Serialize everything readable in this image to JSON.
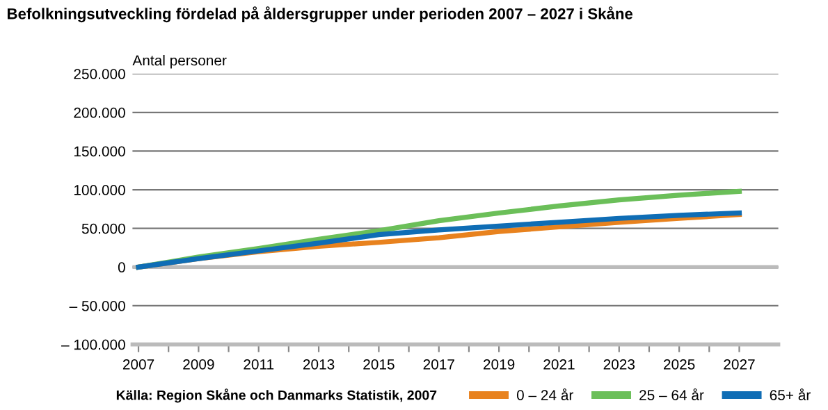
{
  "chart_data": {
    "type": "line",
    "title": "Befolkningsutveckling fördelad på åldersgrupper under perioden 2007 – 2027 i Skåne",
    "ylabel": "Antal personer",
    "x": [
      2007,
      2009,
      2011,
      2013,
      2015,
      2017,
      2019,
      2021,
      2023,
      2025,
      2027
    ],
    "series": [
      {
        "name": "0 – 24 år",
        "color": "#e8821e",
        "values": [
          0,
          11000,
          20000,
          27000,
          32000,
          38000,
          46000,
          52000,
          58000,
          63000,
          68000
        ]
      },
      {
        "name": "25 – 64 år",
        "color": "#6bbf59",
        "values": [
          0,
          13000,
          24000,
          36000,
          47000,
          60000,
          70000,
          79000,
          87000,
          93000,
          98000
        ]
      },
      {
        "name": "65+ år",
        "color": "#0f6db5",
        "values": [
          0,
          11000,
          21000,
          31000,
          42000,
          48000,
          53000,
          58000,
          63000,
          67000,
          70000
        ]
      }
    ],
    "xlim": [
      2006.8,
      2028.3
    ],
    "xticks": [
      2007,
      {
        "value": 2008,
        "label": null
      },
      2009,
      {
        "value": 2010,
        "label": null
      },
      2011,
      {
        "value": 2012,
        "label": null
      },
      2013,
      {
        "value": 2014,
        "label": null
      },
      2015,
      {
        "value": 2016,
        "label": null
      },
      2017,
      {
        "value": 2018,
        "label": null
      },
      2019,
      {
        "value": 2020,
        "label": null
      },
      2021,
      {
        "value": 2022,
        "label": null
      },
      2023,
      {
        "value": 2024,
        "label": null
      },
      2025,
      {
        "value": 2026,
        "label": null
      },
      2027
    ],
    "ylim": [
      -100000,
      250000
    ],
    "yticks": [
      {
        "value": -100000,
        "label": "– 100.000"
      },
      {
        "value": -50000,
        "label": "– 50.000"
      },
      {
        "value": 0,
        "label": "0"
      },
      {
        "value": 50000,
        "label": "50.000"
      },
      {
        "value": 100000,
        "label": "100.000"
      },
      {
        "value": 150000,
        "label": "150.000"
      },
      {
        "value": 200000,
        "label": "200.000"
      },
      {
        "value": 250000,
        "label": "250.000"
      }
    ],
    "grid": "y",
    "legend": "bottom",
    "marker": "none",
    "line_style": "solid",
    "annotations": [
      "Källa: Region Skåne och Danmarks Statistik, 2007"
    ]
  }
}
